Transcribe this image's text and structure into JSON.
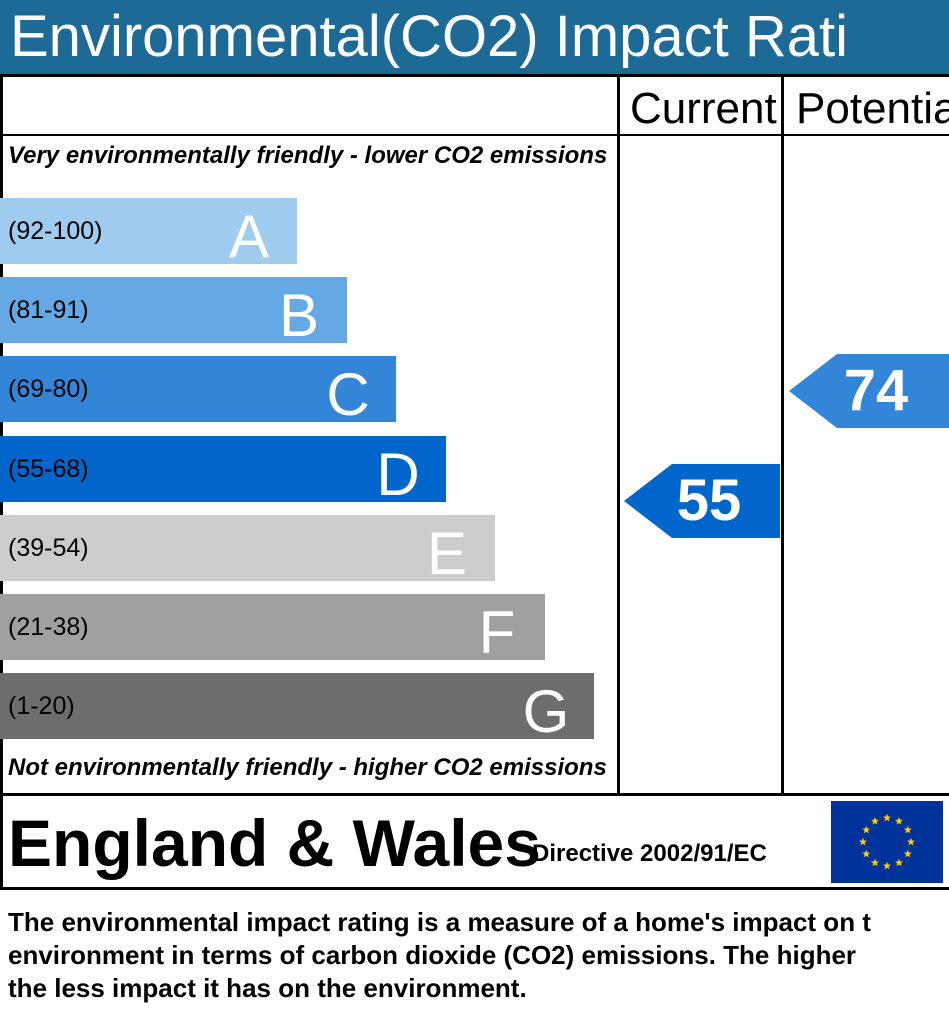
{
  "title": "Environmental(CO2) Impact Rati",
  "columns": {
    "current": "Current",
    "potential": "Potentia"
  },
  "top_note": "Very environmentally friendly - lower CO2 emissions",
  "bottom_note": "Not environmentally friendly - higher CO2 emissions",
  "chart_data": {
    "type": "bar",
    "categories": [
      "A",
      "B",
      "C",
      "D",
      "E",
      "F",
      "G"
    ],
    "ranges": [
      "(92-100)",
      "(81-91)",
      "(69-80)",
      "(55-68)",
      "(39-54)",
      "(21-38)",
      "(1-20)"
    ],
    "colors": [
      "#9ecbee",
      "#65a9e4",
      "#3385d8",
      "#0066cc",
      "#cccccc",
      "#a0a0a0",
      "#6d6d6d"
    ],
    "current": {
      "value": 55,
      "band": "D",
      "color": "#0066cc"
    },
    "potential": {
      "value": 74,
      "band": "C",
      "color": "#3385d8"
    }
  },
  "footer": {
    "region": "England & Wales",
    "directive": "Directive 2002/91/EC",
    "flag_icon": "eu-flag-icon"
  },
  "description": [
    "The environmental impact rating is a measure of a home's impact on t",
    "environment in terms of carbon dioxide (CO2) emissions. The higher",
    "the less impact it has on the environment."
  ]
}
